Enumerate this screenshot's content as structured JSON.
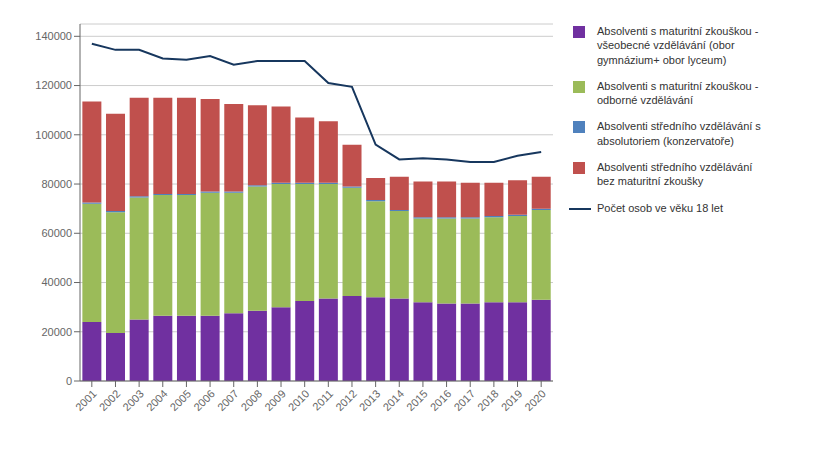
{
  "chart_data": {
    "type": "bar",
    "stacked": true,
    "categories": [
      "2001",
      "2002",
      "2003",
      "2004",
      "2005",
      "2006",
      "2007",
      "2008",
      "2009",
      "2010",
      "2011",
      "2012",
      "2013",
      "2014",
      "2015",
      "2016",
      "2017",
      "2018",
      "2019",
      "2020"
    ],
    "series": [
      {
        "name": "Absolventi s maturitní zkouškou -\nvšeobecné vzdělávání (obor\ngymnázium+ obor lyceum)",
        "color": "#7030A0",
        "values": [
          24000,
          19500,
          25000,
          26500,
          26500,
          26500,
          27500,
          28500,
          30000,
          32500,
          33500,
          34500,
          34000,
          33500,
          32000,
          31500,
          31500,
          32000,
          32000,
          33000
        ]
      },
      {
        "name": "Absolventi s maturitní zkouškou -\nodborné vzdělávání",
        "color": "#9BBB59",
        "values": [
          48000,
          49000,
          49500,
          49000,
          49000,
          50000,
          49000,
          50500,
          50000,
          47500,
          46500,
          44000,
          39000,
          35500,
          34000,
          34500,
          34500,
          34500,
          35000,
          36500
        ]
      },
      {
        "name": "Absolventi středního vzdělávání s\nabsolutoriem (konzervatoře)",
        "color": "#4F81BD",
        "values": [
          500,
          500,
          500,
          500,
          500,
          500,
          500,
          500,
          500,
          500,
          500,
          500,
          500,
          500,
          500,
          500,
          500,
          500,
          500,
          500
        ]
      },
      {
        "name": "Absolventi středního vzdělávání\nbez maturitní zkoušky",
        "color": "#C0504D",
        "values": [
          41000,
          39500,
          40000,
          39000,
          39000,
          37500,
          35500,
          32500,
          31000,
          26500,
          25000,
          17000,
          9000,
          13500,
          14500,
          14500,
          14000,
          13500,
          14000,
          13000
        ]
      },
      {
        "name": "Počet osob ve věku 18 let",
        "type": "line",
        "color": "#17375E",
        "values": [
          137000,
          134500,
          134500,
          131000,
          130500,
          132000,
          128500,
          130000,
          130000,
          130000,
          121000,
          119500,
          96000,
          90000,
          90500,
          90000,
          89000,
          89000,
          91500,
          93000
        ]
      }
    ],
    "ylim": [
      0,
      145000
    ],
    "yticks": [
      0,
      20000,
      40000,
      60000,
      80000,
      100000,
      120000,
      140000
    ],
    "grid": true,
    "legend": "right"
  }
}
